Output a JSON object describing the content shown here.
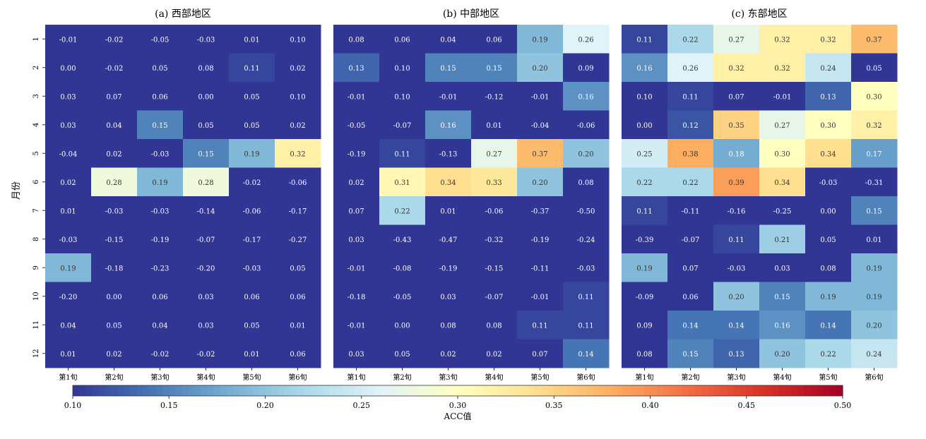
{
  "chart_data": {
    "type": "heatmap",
    "ylabel": "月份",
    "row_labels": [
      "1",
      "2",
      "3",
      "4",
      "5",
      "6",
      "7",
      "8",
      "9",
      "10",
      "11",
      "12"
    ],
    "col_labels": [
      "第1旬",
      "第2旬",
      "第3旬",
      "第4旬",
      "第5旬",
      "第6旬"
    ],
    "colorbar": {
      "label": "ACC值",
      "range": [
        0.1,
        0.5
      ],
      "ticks": [
        "0.10",
        "0.15",
        "0.20",
        "0.25",
        "0.30",
        "0.35",
        "0.40",
        "0.45",
        "0.50"
      ],
      "colormap": [
        "#313695",
        "#4575b4",
        "#74add1",
        "#abd9e9",
        "#e0f3f8",
        "#ffffbf",
        "#fee090",
        "#fdae61",
        "#f46d43",
        "#d73027",
        "#a50026"
      ]
    },
    "panels": [
      {
        "title": "(a)  西部地区",
        "values": [
          [
            -0.01,
            -0.02,
            -0.05,
            -0.03,
            0.01,
            0.1
          ],
          [
            0.0,
            -0.02,
            0.05,
            0.08,
            0.11,
            0.02
          ],
          [
            0.03,
            0.07,
            0.06,
            -0.0,
            0.05,
            0.1
          ],
          [
            0.03,
            0.04,
            0.15,
            0.05,
            0.05,
            0.02
          ],
          [
            -0.04,
            0.02,
            -0.03,
            0.15,
            0.19,
            0.32
          ],
          [
            0.02,
            0.28,
            0.19,
            0.28,
            -0.02,
            -0.06
          ],
          [
            0.01,
            -0.03,
            -0.03,
            -0.14,
            -0.06,
            -0.17
          ],
          [
            -0.03,
            -0.15,
            -0.19,
            -0.07,
            -0.17,
            -0.27
          ],
          [
            0.19,
            -0.18,
            -0.23,
            -0.2,
            -0.03,
            0.05
          ],
          [
            -0.2,
            -0.0,
            0.06,
            0.03,
            0.06,
            0.06
          ],
          [
            0.04,
            0.05,
            0.04,
            0.03,
            0.05,
            0.01
          ],
          [
            0.01,
            0.02,
            -0.02,
            -0.02,
            0.01,
            0.06
          ]
        ]
      },
      {
        "title": "(b)  中部地区",
        "values": [
          [
            0.08,
            0.06,
            0.04,
            0.06,
            0.19,
            0.26
          ],
          [
            0.13,
            0.1,
            0.15,
            0.15,
            0.2,
            0.09
          ],
          [
            -0.01,
            0.1,
            -0.01,
            -0.12,
            -0.01,
            0.16
          ],
          [
            -0.05,
            -0.07,
            0.16,
            0.01,
            -0.04,
            -0.06
          ],
          [
            -0.19,
            0.11,
            -0.13,
            0.27,
            0.37,
            0.2
          ],
          [
            0.02,
            0.31,
            0.34,
            0.33,
            0.2,
            0.08
          ],
          [
            0.07,
            0.22,
            0.01,
            -0.06,
            -0.37,
            -0.5
          ],
          [
            0.03,
            -0.43,
            -0.47,
            -0.32,
            -0.19,
            -0.24
          ],
          [
            -0.01,
            -0.08,
            -0.19,
            -0.15,
            -0.11,
            -0.03
          ],
          [
            -0.18,
            -0.05,
            0.03,
            -0.07,
            -0.01,
            0.11
          ],
          [
            -0.01,
            -0.0,
            0.08,
            0.08,
            0.11,
            0.11
          ],
          [
            0.03,
            0.05,
            0.02,
            0.02,
            0.07,
            0.14
          ]
        ]
      },
      {
        "title": "(c)  东部地区",
        "values": [
          [
            0.11,
            0.22,
            0.27,
            0.32,
            0.32,
            0.37
          ],
          [
            0.16,
            0.26,
            0.32,
            0.32,
            0.24,
            0.05
          ],
          [
            0.1,
            0.11,
            0.07,
            -0.01,
            0.13,
            0.3
          ],
          [
            0.0,
            0.12,
            0.35,
            0.27,
            0.3,
            0.32
          ],
          [
            0.25,
            0.38,
            0.18,
            0.3,
            0.34,
            0.17
          ],
          [
            0.22,
            0.22,
            0.39,
            0.34,
            -0.03,
            -0.31
          ],
          [
            0.11,
            -0.11,
            -0.16,
            -0.25,
            0.0,
            0.15
          ],
          [
            -0.39,
            -0.07,
            0.11,
            0.21,
            0.05,
            0.01
          ],
          [
            0.19,
            0.07,
            -0.03,
            0.03,
            0.08,
            0.19
          ],
          [
            -0.09,
            0.06,
            0.2,
            0.15,
            0.19,
            0.19
          ],
          [
            0.09,
            0.14,
            0.14,
            0.16,
            0.14,
            0.2
          ],
          [
            0.08,
            0.15,
            0.13,
            0.2,
            0.22,
            0.24
          ]
        ]
      }
    ]
  }
}
